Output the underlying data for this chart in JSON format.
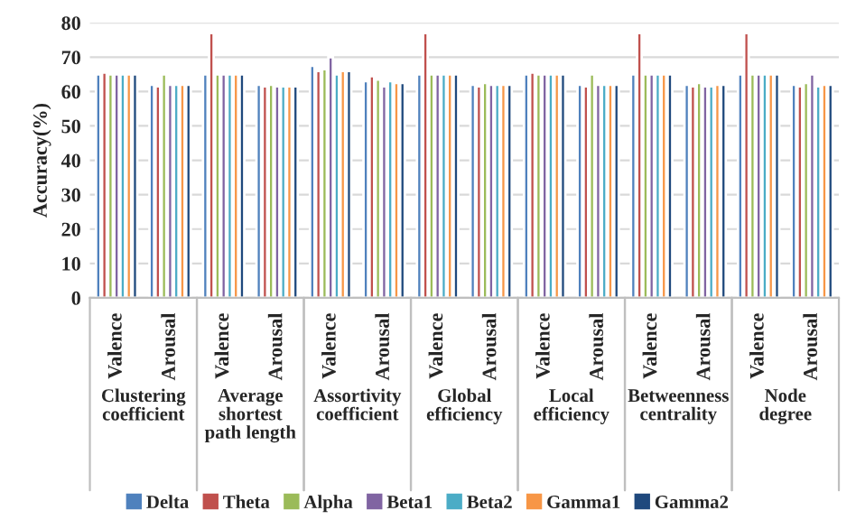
{
  "chart_data": {
    "type": "bar",
    "ylabel": "Accuracy(%)",
    "categories": [
      "Valence",
      "Arousal",
      "Valence",
      "Arousal",
      "Valence",
      "Arousal",
      "Valence",
      "Arousal",
      "Valence",
      "Arousal",
      "Valence",
      "Arousal",
      "Valence",
      "Arousal"
    ],
    "annotations": [
      "Clustering\ncoefficient",
      "Average\nshortest\npath length",
      "Assortivity\ncoefficient",
      "Global\nefficiency",
      "Local\nefficiency",
      "Betweenness\ncentrality",
      "Node\ndegree"
    ],
    "series": [
      {
        "name": "Delta",
        "color": "#4f81bd",
        "values": [
          65,
          62,
          65,
          62,
          67.5,
          63,
          65,
          62,
          65,
          62,
          65,
          62,
          65,
          62
        ]
      },
      {
        "name": "Theta",
        "color": "#c0504d",
        "values": [
          65.5,
          61.5,
          77,
          61.5,
          66,
          64.5,
          77,
          61.5,
          65.5,
          61.5,
          77,
          61.5,
          77,
          61.5
        ]
      },
      {
        "name": "Alpha",
        "color": "#9bbb59",
        "values": [
          65,
          65,
          65,
          62,
          66.5,
          63.5,
          65,
          62.5,
          65,
          65,
          65,
          62.5,
          65,
          62.5
        ]
      },
      {
        "name": "Beta1",
        "color": "#8064a2",
        "values": [
          65,
          62,
          65,
          61.5,
          70,
          61.5,
          65,
          62,
          65,
          62,
          65,
          61.5,
          65,
          65
        ]
      },
      {
        "name": "Beta2",
        "color": "#4bacc6",
        "values": [
          65,
          62,
          65,
          61.5,
          65,
          63,
          65,
          62,
          65,
          62,
          65,
          61.5,
          65,
          61.5
        ]
      },
      {
        "name": "Gamma1",
        "color": "#f79646",
        "values": [
          65,
          62,
          65,
          61.5,
          66,
          62.5,
          65,
          62,
          65,
          62,
          65,
          62,
          65,
          62
        ]
      },
      {
        "name": "Gamma2",
        "color": "#1f497d",
        "values": [
          65,
          62,
          65,
          61.5,
          66,
          62.5,
          65,
          62,
          65,
          62,
          65,
          62,
          65,
          62
        ]
      }
    ],
    "ylim": [
      0,
      80
    ],
    "yticks": [
      0,
      10,
      20,
      30,
      40,
      50,
      60,
      70,
      80
    ],
    "grid": "y",
    "legend": "bottom"
  }
}
